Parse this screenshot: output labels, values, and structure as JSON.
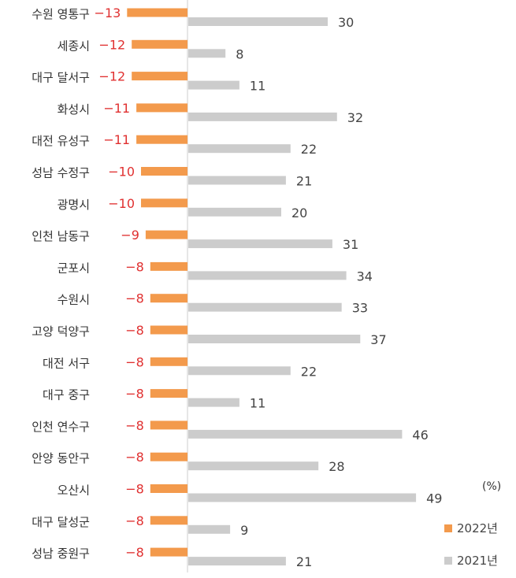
{
  "chart_data": {
    "type": "bar",
    "orientation": "horizontal",
    "unit": "(%)",
    "categories": [
      "수원 영통구",
      "세종시",
      "대구 달서구",
      "화성시",
      "대전 유성구",
      "성남 수정구",
      "광명시",
      "인천 남동구",
      "군포시",
      "수원시",
      "고양 덕양구",
      "대전 서구",
      "대구 중구",
      "인천 연수구",
      "안양 동안구",
      "오산시",
      "대구 달성군",
      "성남 중원구"
    ],
    "series": [
      {
        "name": "2022년",
        "color": "#f39a4c",
        "label_color": "#e03030",
        "values": [
          -13,
          -12,
          -12,
          -11,
          -11,
          -10,
          -10,
          -9,
          -8,
          -8,
          -8,
          -8,
          -8,
          -8,
          -8,
          -8,
          -8,
          -8
        ],
        "labels": [
          "−13",
          "−12",
          "−12",
          "−11",
          "−11",
          "−10",
          "−10",
          "−9",
          "−8",
          "−8",
          "−8",
          "−8",
          "−8",
          "−8",
          "−8",
          "−8",
          "−8",
          "−8"
        ]
      },
      {
        "name": "2021년",
        "color": "#cccccc",
        "label_color": "#444444",
        "values": [
          30,
          8,
          11,
          32,
          22,
          21,
          20,
          31,
          34,
          33,
          37,
          22,
          11,
          46,
          28,
          49,
          9,
          21
        ],
        "labels": [
          "30",
          "8",
          "11",
          "32",
          "22",
          "21",
          "20",
          "31",
          "34",
          "33",
          "37",
          "22",
          "11",
          "46",
          "28",
          "49",
          "9",
          "21"
        ]
      }
    ],
    "legend": {
      "position": "bottom-right",
      "items": [
        "2022년",
        "2021년"
      ]
    },
    "axis_color": "#cccccc"
  }
}
